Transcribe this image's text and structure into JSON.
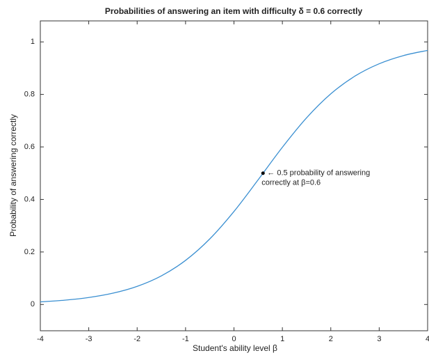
{
  "chart_data": {
    "type": "line",
    "title": "Probabilities of answering an item with difficulty δ = 0.6 correctly",
    "xlabel": "Student's ability level β",
    "ylabel": "Probability of answering correctly",
    "x": [
      -4,
      -3.5,
      -3,
      -2.5,
      -2,
      -1.5,
      -1,
      -0.5,
      0,
      0.5,
      1,
      1.5,
      2,
      2.5,
      3,
      3.5,
      4
    ],
    "series": [
      {
        "color": "#3a8fd1",
        "values": [
          0.00995,
          0.0163,
          0.0266,
          0.0431,
          0.0691,
          0.1091,
          0.168,
          0.2497,
          0.3543,
          0.475,
          0.5987,
          0.7109,
          0.8022,
          0.8699,
          0.9168,
          0.9479,
          0.9677
        ]
      }
    ],
    "annotation": {
      "x": 0.6,
      "y": 0.5,
      "lines": [
        "← 0.5 probability of answering",
        "correctly at β=0.6"
      ]
    },
    "xlim": [
      -4,
      4
    ],
    "ylim": [
      -0.1,
      1.08
    ],
    "xticks": [
      -4,
      -3,
      -2,
      -1,
      0,
      1,
      2,
      3,
      4
    ],
    "yticks": [
      0,
      0.2,
      0.4,
      0.6,
      0.8,
      1
    ],
    "grid": false
  }
}
